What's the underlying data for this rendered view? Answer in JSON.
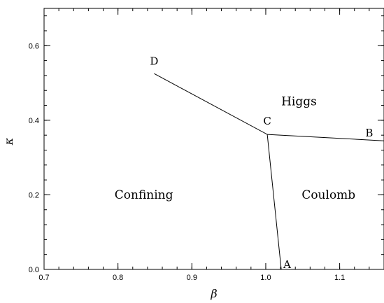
{
  "chart_data": {
    "type": "line",
    "xlabel": "β",
    "ylabel": "κ",
    "xlim": [
      0.7,
      1.16
    ],
    "ylim": [
      0.0,
      0.7
    ],
    "x_ticks": [
      0.7,
      0.8,
      0.9,
      1.0,
      1.1
    ],
    "x_tick_labels": [
      "0.7",
      "0.8",
      "0.9",
      "1.0",
      "1.1"
    ],
    "y_ticks": [
      0.0,
      0.2,
      0.4,
      0.6
    ],
    "y_tick_labels": [
      "0.0",
      "0.2",
      "0.4",
      "0.6"
    ],
    "x_minor_step": 0.02,
    "y_minor_step": 0.04,
    "grid": false,
    "series": [
      {
        "points": [
          [
            0.849,
            0.525
          ],
          [
            1.002,
            0.362
          ]
        ]
      },
      {
        "points": [
          [
            1.002,
            0.362
          ],
          [
            1.16,
            0.345
          ]
        ]
      },
      {
        "points": [
          [
            1.002,
            0.362
          ],
          [
            1.021,
            0.0
          ]
        ]
      }
    ],
    "point_labels": [
      {
        "text": "D",
        "x": 0.849,
        "y": 0.525
      },
      {
        "text": "C",
        "x": 1.002,
        "y": 0.362
      },
      {
        "text": "B",
        "x": 1.14,
        "y": 0.347
      },
      {
        "text": "A",
        "x": 1.021,
        "y": 0.0
      }
    ],
    "region_labels": [
      {
        "text": "Higgs",
        "x": 1.045,
        "y": 0.44
      },
      {
        "text": "Confining",
        "x": 0.835,
        "y": 0.19
      },
      {
        "text": "Coulomb",
        "x": 1.085,
        "y": 0.19
      }
    ]
  }
}
